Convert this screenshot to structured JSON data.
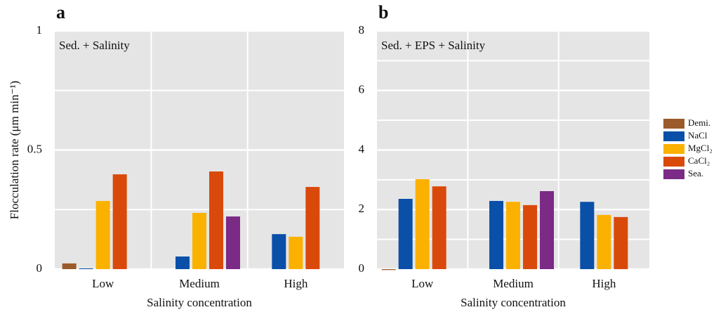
{
  "chart_data": [
    {
      "type": "bar",
      "panel_label": "a",
      "annotation": "Sed. + Salinity",
      "y_label": "Flocculation rate (μm min⁻¹)",
      "x_label": "Salinity concentration",
      "categories": [
        "Low",
        "Medium",
        "High"
      ],
      "series": [
        {
          "name": "Demi.",
          "color": "#9b5a2a",
          "values": [
            0.024,
            null,
            null
          ]
        },
        {
          "name": "NaCl",
          "color": "#0a50a8",
          "values": [
            0.003,
            0.053,
            0.147
          ]
        },
        {
          "name": "MgCl₂",
          "color": "#fbb100",
          "values": [
            0.286,
            0.236,
            0.136
          ]
        },
        {
          "name": "CaCl₂",
          "color": "#d94a0a",
          "values": [
            0.398,
            0.41,
            0.345
          ]
        },
        {
          "name": "Sea.",
          "color": "#7b2a86",
          "values": [
            null,
            0.221,
            null
          ]
        }
      ],
      "ylim": [
        0,
        1
      ],
      "yticks": [
        0,
        0.5,
        1
      ],
      "grid": true
    },
    {
      "type": "bar",
      "panel_label": "b",
      "annotation": "Sed. + EPS + Salinity",
      "x_label": "Salinity concentration",
      "categories": [
        "Low",
        "Medium",
        "High"
      ],
      "series": [
        {
          "color": "#9b5a2a",
          "values": [
            -0.03,
            null,
            null
          ]
        },
        {
          "color": "#0a50a8",
          "values": [
            2.36,
            2.29,
            2.26
          ]
        },
        {
          "color": "#fbb100",
          "values": [
            3.02,
            2.26,
            1.82
          ]
        },
        {
          "color": "#d94a0a",
          "values": [
            2.78,
            2.15,
            1.75
          ]
        },
        {
          "color": "#7b2a86",
          "values": [
            null,
            2.62,
            null
          ]
        }
      ],
      "ylim": [
        0,
        8
      ],
      "yticks": [
        0,
        2,
        4,
        6,
        8
      ],
      "grid": true
    }
  ]
}
